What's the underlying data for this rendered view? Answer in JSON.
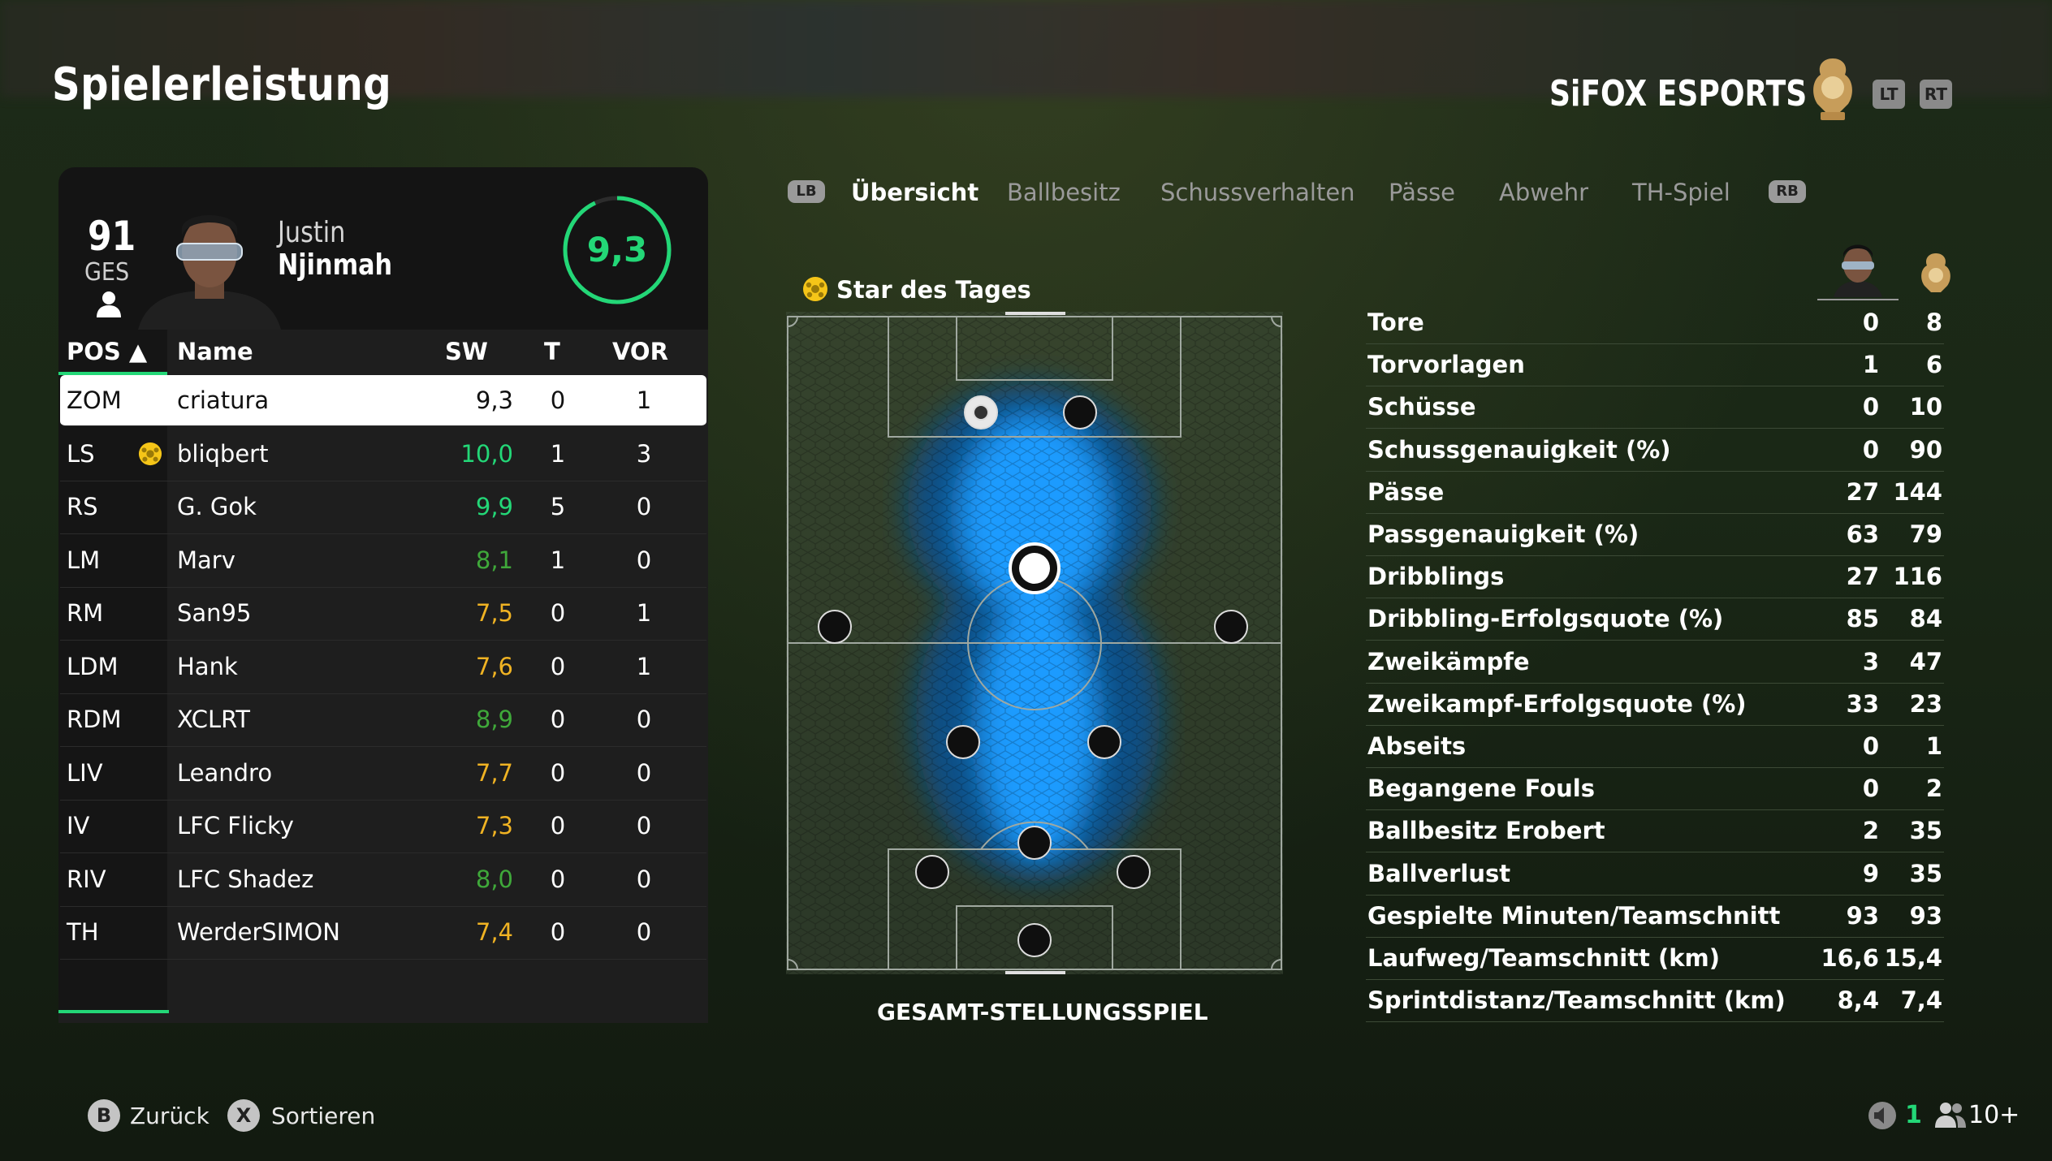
{
  "header": {
    "title": "Spielerleistung",
    "club_name": "SiFOX ESPORTS",
    "buttons": {
      "lt": "LT",
      "rt": "RT"
    }
  },
  "player_card": {
    "overall": "91",
    "overall_label": "GES",
    "first_name": "Justin",
    "last_name": "Njinmah",
    "match_rating": "9,3",
    "match_rating_progress": 0.93
  },
  "table": {
    "headers": {
      "pos": "POS ▲",
      "name": "Name",
      "sw": "SW",
      "t": "T",
      "vor": "VOR"
    },
    "rows": [
      {
        "pos": "ZOM",
        "name": "criatura",
        "sw": "9,3",
        "t": "0",
        "vor": "1",
        "sw_color": "#111111",
        "selected": true,
        "star": false
      },
      {
        "pos": "LS",
        "name": "bliqbert",
        "sw": "10,0",
        "t": "1",
        "vor": "3",
        "sw_color": "#23d777",
        "selected": false,
        "star": true
      },
      {
        "pos": "RS",
        "name": "G. Gok",
        "sw": "9,9",
        "t": "5",
        "vor": "0",
        "sw_color": "#23d777",
        "selected": false,
        "star": false
      },
      {
        "pos": "LM",
        "name": "Marv",
        "sw": "8,1",
        "t": "1",
        "vor": "0",
        "sw_color": "#3fa83a",
        "selected": false,
        "star": false
      },
      {
        "pos": "RM",
        "name": "San95",
        "sw": "7,5",
        "t": "0",
        "vor": "1",
        "sw_color": "#f0b323",
        "selected": false,
        "star": false
      },
      {
        "pos": "LDM",
        "name": "Hank",
        "sw": "7,6",
        "t": "0",
        "vor": "1",
        "sw_color": "#f0b323",
        "selected": false,
        "star": false
      },
      {
        "pos": "RDM",
        "name": "XCLRT",
        "sw": "8,9",
        "t": "0",
        "vor": "0",
        "sw_color": "#3fa83a",
        "selected": false,
        "star": false
      },
      {
        "pos": "LIV",
        "name": "Leandro",
        "sw": "7,7",
        "t": "0",
        "vor": "0",
        "sw_color": "#f0b323",
        "selected": false,
        "star": false
      },
      {
        "pos": "IV",
        "name": "LFC Flicky",
        "sw": "7,3",
        "t": "0",
        "vor": "0",
        "sw_color": "#f0b323",
        "selected": false,
        "star": false
      },
      {
        "pos": "RIV",
        "name": "LFC Shadez",
        "sw": "8,0",
        "t": "0",
        "vor": "0",
        "sw_color": "#3fa83a",
        "selected": false,
        "star": false
      },
      {
        "pos": "TH",
        "name": "WerderSIMON",
        "sw": "7,4",
        "t": "0",
        "vor": "0",
        "sw_color": "#f0b323",
        "selected": false,
        "star": false
      }
    ]
  },
  "tabs": {
    "lb": "LB",
    "rb": "RB",
    "items": [
      "Übersicht",
      "Ballbesitz",
      "Schussverhalten",
      "Pässe",
      "Abwehr",
      "TH-Spiel"
    ],
    "active": "Übersicht"
  },
  "pitch": {
    "star_label": "Star des Tages",
    "title": "GESAMT-STELLUNGSSPIEL"
  },
  "stats": [
    {
      "label": "Tore",
      "player": "0",
      "team": "8"
    },
    {
      "label": "Torvorlagen",
      "player": "1",
      "team": "6"
    },
    {
      "label": "Schüsse",
      "player": "0",
      "team": "10"
    },
    {
      "label": "Schussgenauigkeit (%)",
      "player": "0",
      "team": "90"
    },
    {
      "label": "Pässe",
      "player": "27",
      "team": "144"
    },
    {
      "label": "Passgenauigkeit (%)",
      "player": "63",
      "team": "79"
    },
    {
      "label": "Dribblings",
      "player": "27",
      "team": "116"
    },
    {
      "label": "Dribbling-Erfolgsquote (%)",
      "player": "85",
      "team": "84"
    },
    {
      "label": "Zweikämpfe",
      "player": "3",
      "team": "47"
    },
    {
      "label": "Zweikampf-Erfolgsquote (%)",
      "player": "33",
      "team": "23"
    },
    {
      "label": "Abseits",
      "player": "0",
      "team": "1"
    },
    {
      "label": "Begangene Fouls",
      "player": "0",
      "team": "2"
    },
    {
      "label": "Ballbesitz Erobert",
      "player": "2",
      "team": "35"
    },
    {
      "label": "Ballverlust",
      "player": "9",
      "team": "35"
    },
    {
      "label": "Gespielte Minuten/Teamschnitt",
      "player": "93",
      "team": "93"
    },
    {
      "label": "Laufweg/Teamschnitt (km)",
      "player": "16,6",
      "team": "15,4"
    },
    {
      "label": "Sprintdistanz/Teamschnitt (km)",
      "player": "8,4",
      "team": "7,4"
    }
  ],
  "footer": {
    "back": {
      "key": "B",
      "label": "Zurück"
    },
    "sort": {
      "key": "X",
      "label": "Sortieren"
    },
    "count": "1",
    "players": "10+"
  },
  "colors": {
    "accent": "#23d777",
    "rating_green": "#3fa83a",
    "rating_yellow": "#f0b323",
    "heatmap": "#1a9bff"
  },
  "icons": [
    "person-icon",
    "star-of-the-day-icon",
    "club-crest-icon",
    "speaker-icon",
    "people-icon"
  ]
}
